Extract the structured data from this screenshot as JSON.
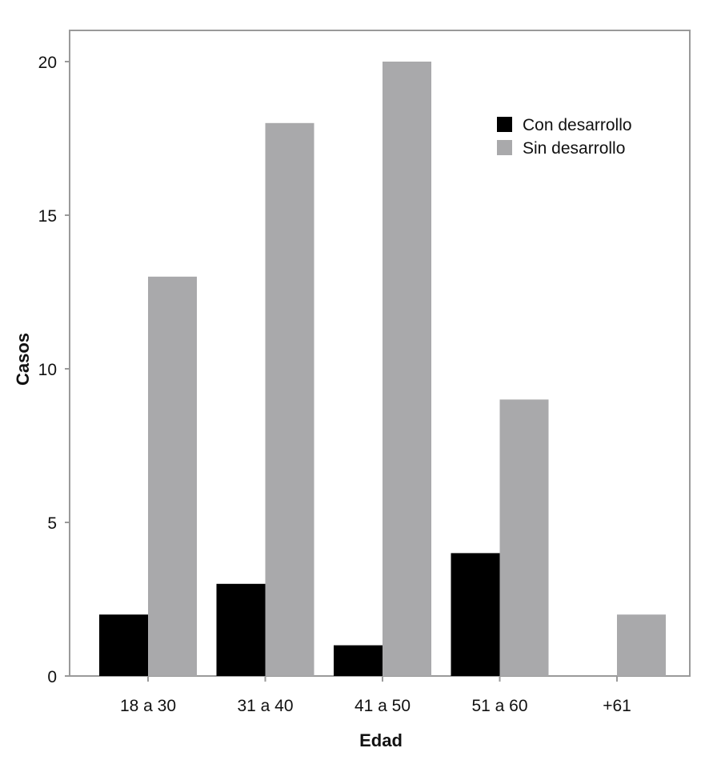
{
  "chart_data": {
    "type": "bar",
    "title": "",
    "xlabel": "Edad",
    "ylabel": "Casos",
    "categories": [
      "18 a 30",
      "31 a 40",
      "41 a 50",
      "51 a 60",
      "+61"
    ],
    "series": [
      {
        "name": "Con desarrollo",
        "values": [
          2,
          3,
          1,
          4,
          0
        ],
        "color": "#000000"
      },
      {
        "name": "Sin desarrollo",
        "values": [
          13,
          18,
          20,
          9,
          2
        ],
        "color": "#a9a9ab"
      }
    ],
    "ylim": [
      0,
      20
    ],
    "yticks": [
      0,
      5,
      10,
      15,
      20
    ],
    "grid": false,
    "legend_position": "top-right"
  }
}
